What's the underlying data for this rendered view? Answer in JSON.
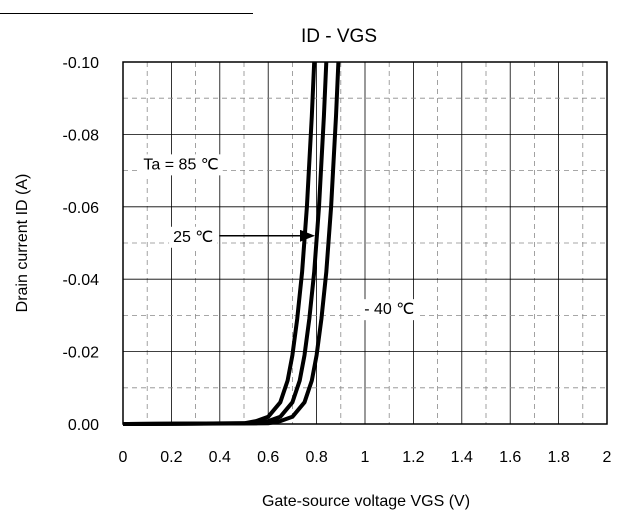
{
  "chart_data": {
    "type": "line",
    "title": "ID - VGS",
    "xlabel": "Gate-source voltage VGS (V)",
    "ylabel": "Drain current ID (A)",
    "xlim": [
      0,
      2
    ],
    "ylim": [
      0.0,
      -0.1
    ],
    "x_ticks": [
      0,
      0.2,
      0.4,
      0.6,
      0.8,
      1,
      1.2,
      1.4,
      1.6,
      1.8,
      2
    ],
    "x_tick_labels": [
      "0",
      "0.2",
      "0.4",
      "0.6",
      "0.8",
      "1",
      "1.2",
      "1.4",
      "1.6",
      "1.8",
      "2"
    ],
    "y_ticks": [
      0,
      -0.02,
      -0.04,
      -0.06,
      -0.08,
      -0.1
    ],
    "y_tick_labels": [
      "0.00",
      "-0.02",
      "-0.04",
      "-0.06",
      "-0.08",
      "-0.10"
    ],
    "grid": "major solid, minor dashed",
    "series": [
      {
        "x": [
          0,
          0.5,
          0.55,
          0.6,
          0.65,
          0.68,
          0.7,
          0.72,
          0.74,
          0.76,
          0.78,
          0.79
        ],
        "y": [
          0,
          -0.0002,
          -0.0008,
          -0.002,
          -0.006,
          -0.012,
          -0.019,
          -0.029,
          -0.042,
          -0.06,
          -0.085,
          -0.1
        ]
      },
      {
        "x": [
          0,
          0.55,
          0.6,
          0.65,
          0.7,
          0.73,
          0.75,
          0.77,
          0.79,
          0.81,
          0.83,
          0.84
        ],
        "y": [
          0,
          -0.0002,
          -0.0008,
          -0.002,
          -0.006,
          -0.012,
          -0.019,
          -0.029,
          -0.042,
          -0.06,
          -0.085,
          -0.1
        ]
      },
      {
        "x": [
          0,
          0.6,
          0.65,
          0.7,
          0.75,
          0.78,
          0.8,
          0.82,
          0.84,
          0.86,
          0.88,
          0.89
        ],
        "y": [
          0,
          -0.0002,
          -0.0008,
          -0.002,
          -0.006,
          -0.012,
          -0.019,
          -0.029,
          -0.042,
          -0.06,
          -0.085,
          -0.1
        ]
      }
    ],
    "annotations": [
      {
        "text": "Ta = 85 ℃",
        "x": 0.24,
        "y": -0.072
      },
      {
        "text": "25 ℃",
        "x": 0.29,
        "y": -0.052
      },
      {
        "text": "- 40 ℃",
        "x": 1.1,
        "y": -0.032
      }
    ]
  }
}
